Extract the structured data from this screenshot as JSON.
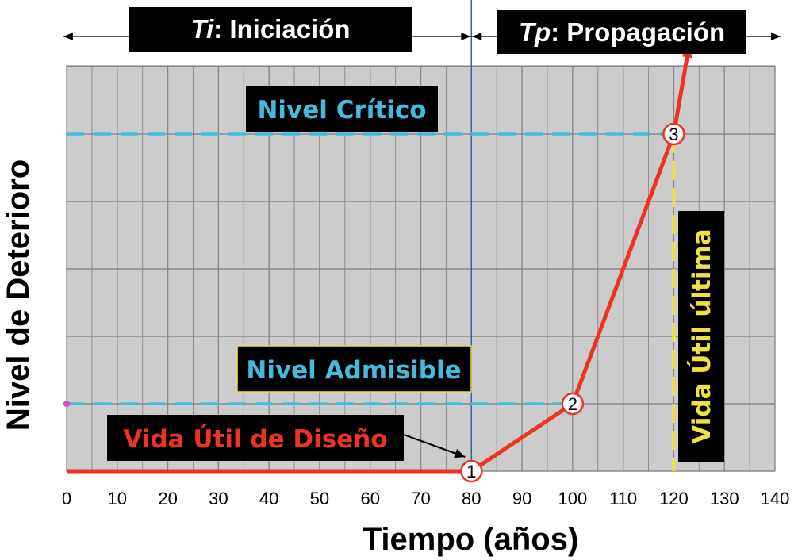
{
  "chart_data": {
    "type": "line",
    "title": "",
    "xlabel": "Tiempo (años)",
    "ylabel": "Nivel de Deterioro",
    "xlim": [
      0,
      140
    ],
    "ylim": [
      0,
      6
    ],
    "x_ticks": [
      0,
      10,
      20,
      30,
      40,
      50,
      60,
      70,
      80,
      90,
      100,
      110,
      120,
      130,
      140
    ],
    "x_tick_labels": [
      "0",
      "10",
      "20",
      "30",
      "40",
      "50",
      "60",
      "70",
      "80",
      "90",
      "100",
      "110",
      "120",
      "130",
      "140"
    ],
    "grid": true,
    "legend": "none",
    "series": [
      {
        "color": "#ee3322",
        "x": [
          0,
          80,
          100,
          120,
          123
        ],
        "y": [
          0,
          0,
          1,
          5,
          6.3
        ]
      }
    ],
    "levels": {
      "critico": {
        "label": "Nivel Crítico",
        "y": 5,
        "color": "#44bbdd"
      },
      "admisible": {
        "label": "Nivel Admisible",
        "y": 1,
        "color": "#44bbdd"
      }
    },
    "markers": [
      {
        "label": "1",
        "x": 80,
        "y": 0
      },
      {
        "label": "2",
        "x": 100,
        "y": 1
      },
      {
        "label": "3",
        "x": 120,
        "y": 5
      }
    ],
    "phases": {
      "iniciacion": {
        "abbr": "Ti",
        "label": ": Iniciación",
        "x_range": [
          0,
          80
        ]
      },
      "propagacion": {
        "abbr": "Tp",
        "label": ": Propagación",
        "x_range": [
          80,
          140
        ]
      }
    },
    "annotations": {
      "vida_diseno": {
        "label": "Vida Útil de Diseño",
        "x": 80,
        "color": "#ee3322"
      },
      "vida_ultima": {
        "label": "Vida Útil última",
        "x": 120,
        "color": "#f0e040"
      }
    },
    "colors": {
      "plot_bg": "#cccccc",
      "grid": "#888888",
      "box_bg": "#000000",
      "divider": "#3366aa"
    }
  }
}
